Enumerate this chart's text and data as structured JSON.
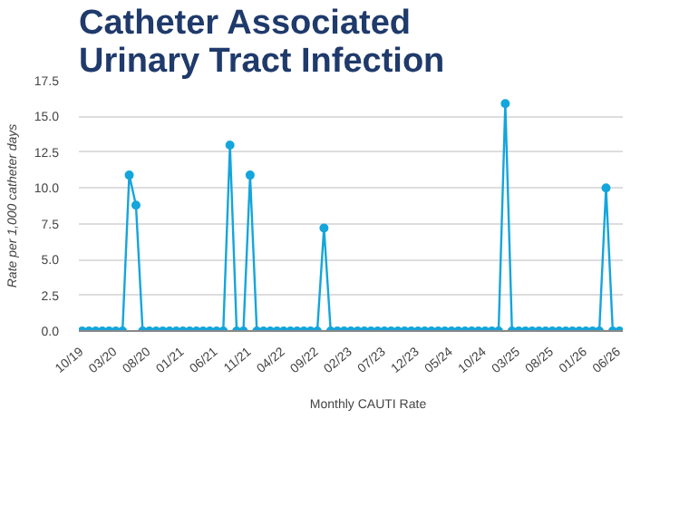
{
  "chart_data": {
    "type": "line",
    "title": "Catheter Associated Urinary Tract Infection",
    "ylabel": "Rate per 1,000 catheter days",
    "categories": [
      "10/19",
      null,
      null,
      null,
      null,
      "03/20",
      null,
      null,
      null,
      null,
      "08/20",
      null,
      null,
      null,
      null,
      "01/21",
      null,
      null,
      null,
      null,
      "06/21",
      null,
      null,
      null,
      null,
      "11/21",
      null,
      null,
      null,
      null,
      "04/22",
      null,
      null,
      null,
      null,
      "09/22",
      null,
      null,
      null,
      null,
      "02/23",
      null,
      null,
      null,
      null,
      "07/23",
      null,
      null,
      null,
      null,
      "12/23",
      null,
      null,
      null,
      null,
      "05/24",
      null,
      null,
      null,
      null,
      "10/24",
      null,
      null,
      null,
      null,
      "03/25",
      null,
      null,
      null,
      null,
      "08/25",
      null,
      null,
      null,
      null,
      "01/26",
      null,
      null,
      null,
      null,
      "06/26"
    ],
    "series": [
      {
        "name": "Monthly CAUTI Rate",
        "color": "#14a5dc",
        "values": [
          0,
          0,
          0,
          0,
          0,
          0,
          0,
          10.9,
          8.8,
          0,
          0,
          0,
          0,
          0,
          0,
          0,
          0,
          0,
          0,
          0,
          0,
          0,
          13.0,
          0,
          0,
          10.9,
          0,
          0,
          0,
          0,
          0,
          0,
          0,
          0,
          0,
          0,
          7.2,
          0,
          0,
          0,
          0,
          0,
          0,
          0,
          0,
          0,
          0,
          0,
          0,
          0,
          0,
          0,
          0,
          0,
          0,
          0,
          0,
          0,
          0,
          0,
          0,
          0,
          0,
          15.9,
          0,
          0,
          0,
          0,
          0,
          0,
          0,
          0,
          0,
          0,
          0,
          0,
          0,
          0,
          10.0,
          0,
          0
        ]
      }
    ],
    "ylim": [
      0,
      17.5
    ],
    "yticks": [
      {
        "value": 0,
        "label": "0.0"
      },
      {
        "value": 2.5,
        "label": "2.5"
      },
      {
        "value": 5,
        "label": "5.0"
      },
      {
        "value": 7.5,
        "label": "7.5"
      },
      {
        "value": 10,
        "label": "10.0"
      },
      {
        "value": 12.5,
        "label": "12.5"
      },
      {
        "value": 15,
        "label": "15.0"
      },
      {
        "value": 17.5,
        "label": "17.5"
      }
    ],
    "grid": "y",
    "legend": "bottom",
    "marker": "circle",
    "line_style": "solid"
  }
}
